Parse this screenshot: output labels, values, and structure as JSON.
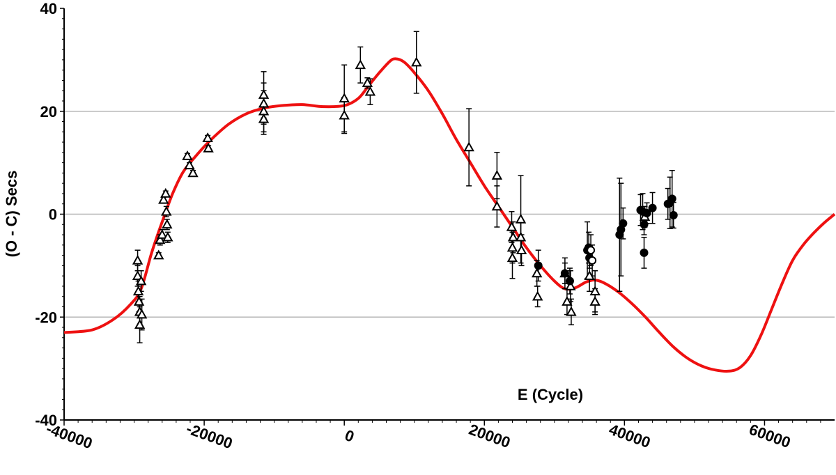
{
  "chart_data": {
    "type": "scatter",
    "xlabel": "E (Cycle)",
    "ylabel": "(O - C) Secs",
    "xlim": [
      -40000,
      70000
    ],
    "ylim": [
      -40,
      40
    ],
    "x_ticks": [
      -40000,
      -20000,
      0,
      20000,
      40000,
      60000
    ],
    "x_tick_labels": [
      "-40000",
      "-20000",
      "0",
      "20000",
      "40000",
      "60000"
    ],
    "y_ticks": [
      -40,
      -20,
      0,
      20,
      40
    ],
    "y_tick_labels": [
      "-40",
      "-20",
      "0",
      "20",
      "40"
    ],
    "grid": "horizontal",
    "colors": {
      "fit": "#ee1111",
      "points": "#000000",
      "grid": "#b4b4b4"
    },
    "series": [
      {
        "marker": "open-triangle",
        "points": [
          {
            "x": -29500,
            "y": -9,
            "err": 2
          },
          {
            "x": -29500,
            "y": -12,
            "err": 2
          },
          {
            "x": -29400,
            "y": -15,
            "err": 2
          },
          {
            "x": -29300,
            "y": -17,
            "err": 2
          },
          {
            "x": -29200,
            "y": -19,
            "err": 3
          },
          {
            "x": -29200,
            "y": -21.5,
            "err": 3.5
          },
          {
            "x": -29000,
            "y": -13,
            "err": 2
          },
          {
            "x": -28900,
            "y": -19.5,
            "err": 3
          },
          {
            "x": -26500,
            "y": -8,
            "err": 0.5
          },
          {
            "x": -26300,
            "y": -5,
            "err": 1
          },
          {
            "x": -26000,
            "y": -4,
            "err": 1
          },
          {
            "x": -25800,
            "y": 2.8,
            "err": 0.5
          },
          {
            "x": -25500,
            "y": 4,
            "err": 0.5
          },
          {
            "x": -25400,
            "y": 0.5,
            "err": 1
          },
          {
            "x": -25300,
            "y": -2,
            "err": 1
          },
          {
            "x": -25200,
            "y": -4.5,
            "err": 1
          },
          {
            "x": -22400,
            "y": 11.3,
            "err": 0.5
          },
          {
            "x": -22100,
            "y": 9.5,
            "err": 0.5
          },
          {
            "x": -21600,
            "y": 8,
            "err": 0.5
          },
          {
            "x": -19500,
            "y": 14.8,
            "err": 0.5
          },
          {
            "x": -19400,
            "y": 12.8,
            "err": 0.5
          },
          {
            "x": -11500,
            "y": 23.2,
            "err": 4.5
          },
          {
            "x": -11500,
            "y": 21.5,
            "err": 4
          },
          {
            "x": -11500,
            "y": 20,
            "err": 4
          },
          {
            "x": -11500,
            "y": 18.5,
            "err": 3
          },
          {
            "x": 0,
            "y": 22.5,
            "err": 6.5
          },
          {
            "x": 0,
            "y": 19.2,
            "err": 3.5
          },
          {
            "x": 2300,
            "y": 29,
            "err": 3.5
          },
          {
            "x": 3300,
            "y": 25.5,
            "err": 1
          },
          {
            "x": 3700,
            "y": 23.8,
            "err": 2.5
          },
          {
            "x": 10300,
            "y": 29.5,
            "err": 6
          },
          {
            "x": 17800,
            "y": 13,
            "err": 7.5
          },
          {
            "x": 21800,
            "y": 7.5,
            "err": 4.5
          },
          {
            "x": 21800,
            "y": 1.5,
            "err": 4
          },
          {
            "x": 23900,
            "y": -2.5,
            "err": 3
          },
          {
            "x": 24000,
            "y": -6.5,
            "err": 3
          },
          {
            "x": 24000,
            "y": -8.5,
            "err": 4
          },
          {
            "x": 24100,
            "y": -4.5,
            "err": 3
          },
          {
            "x": 25200,
            "y": -1,
            "err": 8.5
          },
          {
            "x": 25200,
            "y": -4.5,
            "err": 3
          },
          {
            "x": 25300,
            "y": -7,
            "err": 3
          },
          {
            "x": 27500,
            "y": -11.5,
            "err": 2.5
          },
          {
            "x": 27600,
            "y": -16,
            "err": 2
          },
          {
            "x": 31500,
            "y": -11.5,
            "err": 3
          },
          {
            "x": 31800,
            "y": -17,
            "err": 2.5
          },
          {
            "x": 32300,
            "y": -14,
            "err": 3
          },
          {
            "x": 32400,
            "y": -19,
            "err": 2.5
          },
          {
            "x": 35000,
            "y": -12,
            "err": 3
          },
          {
            "x": 35800,
            "y": -15,
            "err": 4
          },
          {
            "x": 35800,
            "y": -17,
            "err": 2.5
          },
          {
            "x": 42900,
            "y": -0.5,
            "err": 2
          }
        ]
      },
      {
        "marker": "filled-circle",
        "points": [
          {
            "x": 27700,
            "y": -10,
            "err": 3
          },
          {
            "x": 31500,
            "y": -11.5,
            "err": 2
          },
          {
            "x": 32200,
            "y": -13,
            "err": 2.5
          },
          {
            "x": 34700,
            "y": -7,
            "err": 5.5
          },
          {
            "x": 34900,
            "y": -6.5,
            "err": 3
          },
          {
            "x": 35000,
            "y": -8.5,
            "err": 2
          },
          {
            "x": 39300,
            "y": -4,
            "err": 11
          },
          {
            "x": 39500,
            "y": -3,
            "err": 9
          },
          {
            "x": 39800,
            "y": -1.8,
            "err": 3
          },
          {
            "x": 42300,
            "y": 0.8,
            "err": 3
          },
          {
            "x": 42600,
            "y": 0.5,
            "err": 3.5
          },
          {
            "x": 42800,
            "y": -7.5,
            "err": 3
          },
          {
            "x": 42800,
            "y": -2,
            "err": 2
          },
          {
            "x": 43200,
            "y": 0.2,
            "err": 2
          },
          {
            "x": 44000,
            "y": 1.2,
            "err": 3
          },
          {
            "x": 46200,
            "y": 2,
            "err": 3
          },
          {
            "x": 46500,
            "y": 2.2,
            "err": 5
          },
          {
            "x": 46800,
            "y": 3,
            "err": 5.5
          },
          {
            "x": 47000,
            "y": -0.2,
            "err": 2.5
          }
        ]
      },
      {
        "marker": "open-circle",
        "points": [
          {
            "x": 35200,
            "y": -7,
            "err": 3
          },
          {
            "x": 35400,
            "y": -9,
            "err": 3
          }
        ]
      },
      {
        "marker": "line",
        "color": "#ee1111",
        "points": [
          {
            "x": -40000,
            "y": -23
          },
          {
            "x": -36000,
            "y": -22.5
          },
          {
            "x": -33000,
            "y": -20.5
          },
          {
            "x": -30500,
            "y": -17.5
          },
          {
            "x": -29000,
            "y": -14.5
          },
          {
            "x": -27500,
            "y": -7.5
          },
          {
            "x": -26000,
            "y": -1.5
          },
          {
            "x": -24500,
            "y": 4
          },
          {
            "x": -23000,
            "y": 8.2
          },
          {
            "x": -21000,
            "y": 11.6
          },
          {
            "x": -19000,
            "y": 14.5
          },
          {
            "x": -16500,
            "y": 17.5
          },
          {
            "x": -14000,
            "y": 19.5
          },
          {
            "x": -11500,
            "y": 20.6
          },
          {
            "x": -9000,
            "y": 21.1
          },
          {
            "x": -6000,
            "y": 21.3
          },
          {
            "x": -3000,
            "y": 20.9
          },
          {
            "x": 0,
            "y": 21.1
          },
          {
            "x": 2000,
            "y": 22.5
          },
          {
            "x": 3500,
            "y": 25
          },
          {
            "x": 5000,
            "y": 27.5
          },
          {
            "x": 6500,
            "y": 29.7
          },
          {
            "x": 7300,
            "y": 30.2
          },
          {
            "x": 8500,
            "y": 29.6
          },
          {
            "x": 10000,
            "y": 27.5
          },
          {
            "x": 12000,
            "y": 24
          },
          {
            "x": 14000,
            "y": 19.5
          },
          {
            "x": 16000,
            "y": 14.5
          },
          {
            "x": 18000,
            "y": 10
          },
          {
            "x": 20000,
            "y": 5.5
          },
          {
            "x": 22000,
            "y": 1.5
          },
          {
            "x": 24000,
            "y": -2.5
          },
          {
            "x": 26000,
            "y": -6.5
          },
          {
            "x": 28000,
            "y": -10
          },
          {
            "x": 30000,
            "y": -13
          },
          {
            "x": 31500,
            "y": -14.5
          },
          {
            "x": 33000,
            "y": -14.3
          },
          {
            "x": 34500,
            "y": -13.2
          },
          {
            "x": 35700,
            "y": -12.8
          },
          {
            "x": 37000,
            "y": -13.3
          },
          {
            "x": 39000,
            "y": -15
          },
          {
            "x": 41000,
            "y": -17.3
          },
          {
            "x": 43000,
            "y": -20
          },
          {
            "x": 45000,
            "y": -23
          },
          {
            "x": 47000,
            "y": -25.8
          },
          {
            "x": 49000,
            "y": -28
          },
          {
            "x": 51000,
            "y": -29.5
          },
          {
            "x": 53000,
            "y": -30.3
          },
          {
            "x": 55000,
            "y": -30.5
          },
          {
            "x": 56500,
            "y": -29.8
          },
          {
            "x": 58000,
            "y": -27.5
          },
          {
            "x": 59500,
            "y": -23.5
          },
          {
            "x": 61000,
            "y": -18.5
          },
          {
            "x": 62500,
            "y": -13.5
          },
          {
            "x": 64000,
            "y": -9
          },
          {
            "x": 65500,
            "y": -6
          },
          {
            "x": 67000,
            "y": -3.7
          },
          {
            "x": 68500,
            "y": -1.7
          },
          {
            "x": 70000,
            "y": 0
          }
        ]
      }
    ]
  }
}
